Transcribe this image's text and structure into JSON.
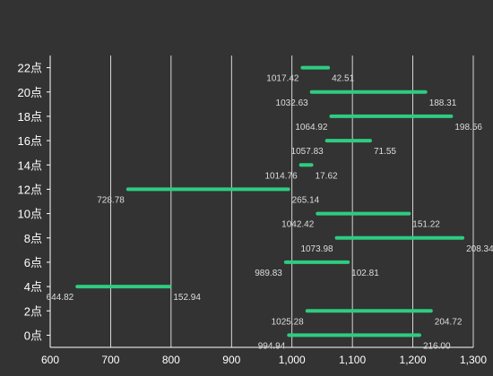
{
  "chart_data": {
    "type": "bar",
    "orientation": "horizontal-floating",
    "grid": true,
    "bar_color": "#2ecc80",
    "background": "#333333",
    "xlim": [
      600,
      1300
    ],
    "x_ticks": [
      "600",
      "700",
      "800",
      "900",
      "1,000",
      "1,100",
      "1,200",
      "1,300"
    ],
    "x_tick_values": [
      600,
      700,
      800,
      900,
      1000,
      1100,
      1200,
      1300
    ],
    "categories": [
      "0点",
      "2点",
      "4点",
      "6点",
      "8点",
      "10点",
      "12点",
      "14点",
      "16点",
      "18点",
      "20点",
      "22点"
    ],
    "starts": [
      994.94,
      1025.28,
      644.82,
      989.83,
      1073.98,
      1042.42,
      728.78,
      1014.76,
      1057.83,
      1064.92,
      1032.63,
      1017.42
    ],
    "lengths": [
      216.0,
      204.72,
      152.94,
      102.81,
      208.34,
      151.22,
      265.14,
      17.62,
      71.55,
      198.56,
      188.31,
      42.51
    ],
    "start_labels": [
      "994.94",
      "1025.28",
      "644.82",
      "989.83",
      "1073.98",
      "1042.42",
      "728.78",
      "1014.76",
      "1057.83",
      "1064.92",
      "1032.63",
      "1017.42"
    ],
    "length_labels": [
      "216.00",
      "204.72",
      "152.94",
      "102.81",
      "208.34",
      "151.22",
      "265.14",
      "17.62",
      "71.55",
      "198.56",
      "188.31",
      "42.51"
    ]
  }
}
